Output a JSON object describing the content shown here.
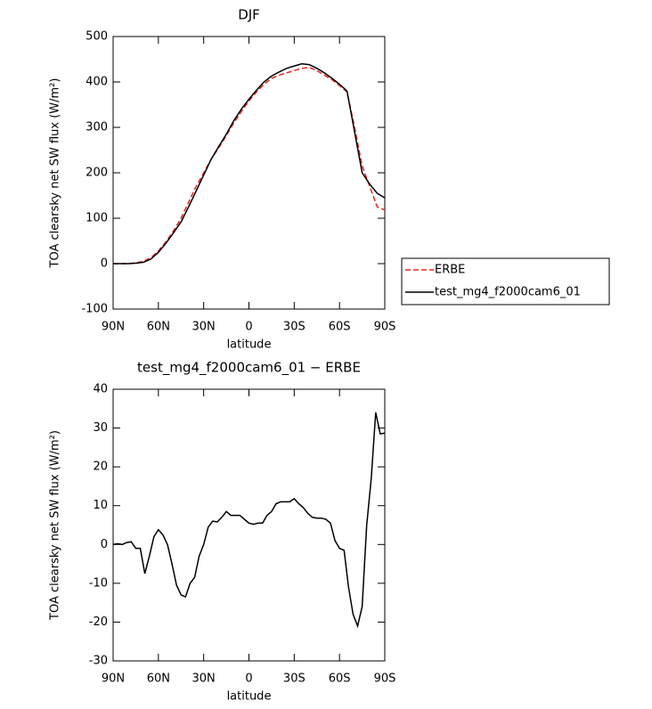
{
  "chart_data": [
    {
      "type": "line",
      "title": "DJF",
      "xlabel": "latitude",
      "ylabel": "TOA clearsky net SW flux (W/m²)",
      "xlim": [
        90,
        -90
      ],
      "xticks": [
        {
          "value": 90,
          "label": "90N"
        },
        {
          "value": 60,
          "label": "60N"
        },
        {
          "value": 30,
          "label": "30N"
        },
        0,
        {
          "value": -30,
          "label": "30S"
        },
        {
          "value": -60,
          "label": "60S"
        },
        {
          "value": -90,
          "label": "90S"
        }
      ],
      "ylim": [
        -100,
        500
      ],
      "yticks": [
        -100,
        0,
        100,
        200,
        300,
        400,
        500
      ],
      "legend": "outside-right",
      "x": [
        90,
        85,
        80,
        75,
        70,
        65,
        60,
        55,
        50,
        45,
        40,
        35,
        30,
        25,
        20,
        15,
        10,
        5,
        0,
        -5,
        -10,
        -15,
        -20,
        -25,
        -30,
        -35,
        -40,
        -45,
        -50,
        -55,
        -60,
        -65,
        -70,
        -75,
        -80,
        -85,
        -90
      ],
      "series": [
        {
          "name": "ERBE",
          "color": "#e8231e",
          "dash": true,
          "values": [
            0,
            0,
            0,
            2,
            5,
            13,
            28,
            48,
            72,
            100,
            135,
            170,
            200,
            230,
            255,
            282,
            310,
            335,
            358,
            378,
            395,
            408,
            415,
            420,
            425,
            430,
            432,
            425,
            415,
            405,
            392,
            378,
            300,
            215,
            170,
            125,
            118
          ]
        },
        {
          "name": "test_mg4_f2000cam6_01",
          "color": "#000000",
          "dash": false,
          "values": [
            0,
            0,
            0,
            1,
            3,
            10,
            25,
            45,
            68,
            92,
            125,
            160,
            195,
            230,
            258,
            285,
            315,
            340,
            362,
            382,
            400,
            413,
            422,
            430,
            435,
            440,
            438,
            430,
            420,
            408,
            395,
            380,
            290,
            200,
            175,
            155,
            145
          ]
        }
      ]
    },
    {
      "type": "line",
      "title": "test_mg4_f2000cam6_01 − ERBE",
      "xlabel": "latitude",
      "ylabel": "TOA clearsky net SW flux (W/m²)",
      "xlim": [
        90,
        -90
      ],
      "xticks": [
        {
          "value": 90,
          "label": "90N"
        },
        {
          "value": 60,
          "label": "60N"
        },
        {
          "value": 30,
          "label": "30N"
        },
        0,
        {
          "value": -30,
          "label": "30S"
        },
        {
          "value": -60,
          "label": "60S"
        },
        {
          "value": -90,
          "label": "90S"
        }
      ],
      "ylim": [
        -30,
        40
      ],
      "yticks": [
        -30,
        -20,
        -10,
        0,
        10,
        20,
        30,
        40
      ],
      "x": [
        90,
        87,
        84,
        81,
        78,
        75,
        72,
        69,
        66,
        63,
        60,
        57,
        54,
        51,
        48,
        45,
        42,
        39,
        36,
        33,
        30,
        27,
        24,
        21,
        18,
        15,
        12,
        9,
        6,
        3,
        0,
        -3,
        -6,
        -9,
        -12,
        -15,
        -18,
        -21,
        -24,
        -27,
        -30,
        -33,
        -36,
        -39,
        -42,
        -45,
        -48,
        -51,
        -54,
        -57,
        -60,
        -63,
        -66,
        -69,
        -72,
        -75,
        -78,
        -81,
        -84,
        -87,
        -90
      ],
      "series": [
        {
          "color": "#000000",
          "dash": false,
          "values": [
            0,
            0.2,
            0,
            0.5,
            0.7,
            -1,
            -1,
            -7.5,
            -3,
            2,
            3.8,
            2.5,
            0,
            -5,
            -10.5,
            -13,
            -13.5,
            -10,
            -8.5,
            -3,
            0,
            4.5,
            6,
            5.8,
            7,
            8.5,
            7.5,
            7.5,
            7.5,
            6.5,
            5.5,
            5.2,
            5.5,
            5.5,
            7.5,
            8.5,
            10.5,
            11,
            11,
            11,
            11.8,
            10.5,
            9.5,
            8,
            7,
            6.8,
            6.8,
            6.5,
            5.5,
            1,
            -1,
            -1.5,
            -11,
            -18,
            -21,
            -16,
            5,
            17,
            34,
            28.5,
            28.7
          ]
        }
      ]
    }
  ]
}
